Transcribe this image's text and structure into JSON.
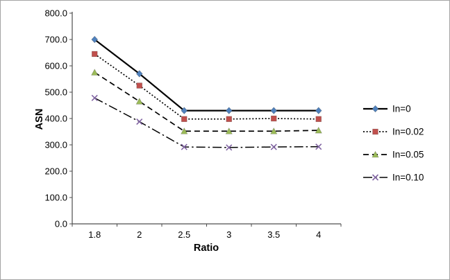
{
  "figure": {
    "background": "#ffffff",
    "border_color": "#a3a3a3"
  },
  "chart_data": {
    "type": "line",
    "title": "",
    "xlabel": "Ratio",
    "ylabel": "ASN",
    "x_categories": [
      "1.8",
      "2",
      "2.5",
      "3",
      "3.5",
      "4"
    ],
    "ylim": [
      0,
      800
    ],
    "ytick_step": 100,
    "ytick_format_decimals": 1,
    "grid": false,
    "legend_position": "right",
    "axis_color": "#4d4d4d",
    "line_color": "#000000",
    "series": [
      {
        "name": "In=0",
        "values": [
          700,
          570,
          430,
          430,
          430,
          430
        ],
        "marker": "diamond",
        "marker_color": "#4F81BD",
        "dash": "solid"
      },
      {
        "name": "In=0.02",
        "values": [
          645,
          525,
          398,
          398,
          400,
          398
        ],
        "marker": "square",
        "marker_color": "#C0504D",
        "dash": "dotted"
      },
      {
        "name": "In=0.05",
        "values": [
          575,
          465,
          352,
          352,
          352,
          355
        ],
        "marker": "triangle",
        "marker_color": "#9BBB59",
        "dash": "dashed"
      },
      {
        "name": "In=0.10",
        "values": [
          478,
          388,
          292,
          290,
          292,
          293
        ],
        "marker": "x",
        "marker_color": "#8064A2",
        "dash": "dashdot"
      }
    ]
  }
}
